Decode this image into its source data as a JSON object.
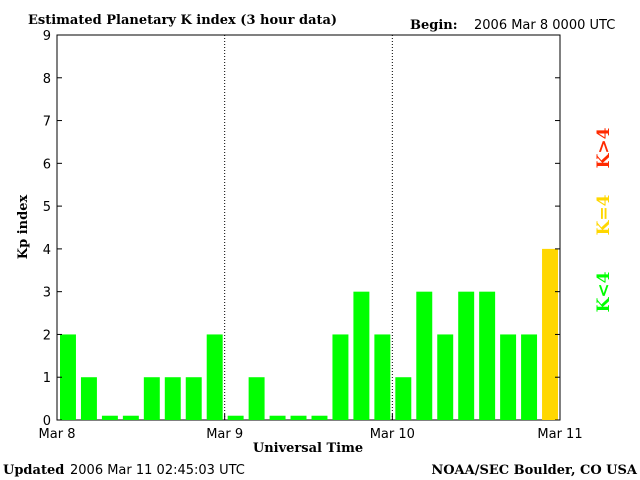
{
  "header": {
    "title": "Estimated Planetary K index (3 hour data)",
    "begin_label": "Begin:",
    "begin_value": "2006 Mar 8 0000 UTC"
  },
  "footer": {
    "updated_label": "Updated",
    "updated_value": "2006 Mar 11 02:45:03 UTC",
    "source": "NOAA/SEC Boulder, CO USA"
  },
  "legend": {
    "low": "K<4",
    "equal": "K=4",
    "high": "K>4"
  },
  "colors": {
    "low": "#00ff00",
    "equal": "#ffd700",
    "high": "#ff2a00",
    "axis": "#000000"
  },
  "chart_data": {
    "type": "bar",
    "title": "Estimated Planetary K index (3 hour data)",
    "xlabel": "Universal Time",
    "ylabel": "Kp index",
    "ylim": [
      0,
      9
    ],
    "yticks": [
      0,
      1,
      2,
      3,
      4,
      5,
      6,
      7,
      8,
      9
    ],
    "x_ticks": [
      "Mar 8",
      "Mar 9",
      "Mar 10",
      "Mar 11"
    ],
    "day_dividers": [
      "Mar 9",
      "Mar 10"
    ],
    "bar_interval_hours": 3,
    "values": [
      2,
      1,
      0.1,
      0.1,
      1,
      1,
      1,
      2,
      0.1,
      1,
      0.1,
      0.1,
      0.1,
      2,
      3,
      2,
      1,
      3,
      2,
      3,
      3,
      2,
      2,
      4
    ]
  }
}
